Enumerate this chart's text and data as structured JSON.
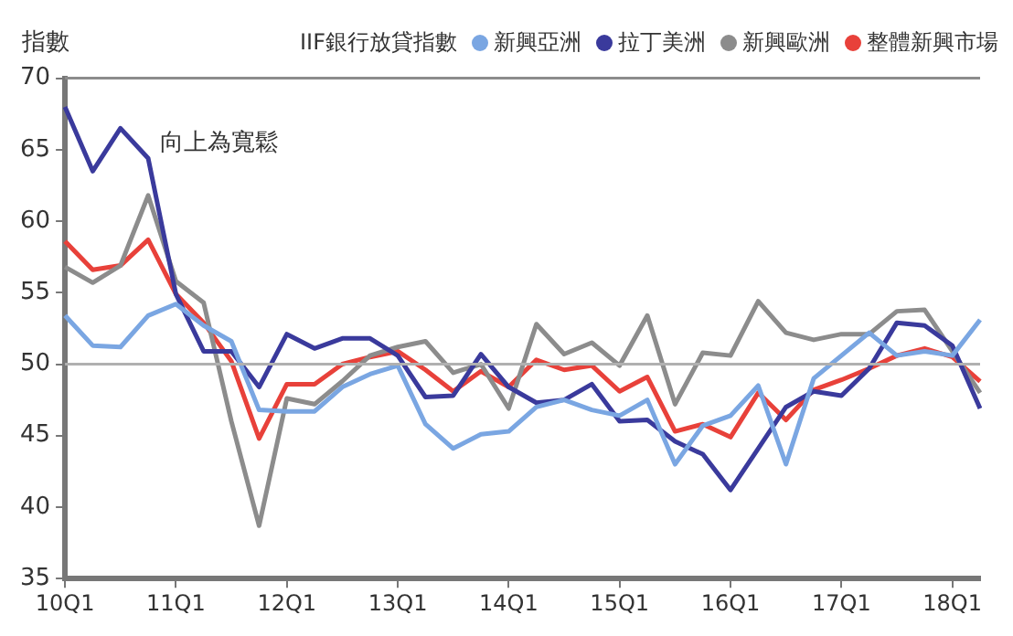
{
  "chart_data": {
    "type": "line",
    "ylabel": "指數",
    "legend_title": "IIF銀行放貸指數",
    "legend": "top right",
    "categories": [
      "10Q1",
      null,
      null,
      null,
      "11Q1",
      null,
      null,
      null,
      "12Q1",
      null,
      null,
      null,
      "13Q1",
      null,
      null,
      null,
      "14Q1",
      null,
      null,
      null,
      "15Q1",
      null,
      null,
      null,
      "16Q1",
      null,
      null,
      null,
      "17Q1",
      null,
      null,
      null,
      "18Q1",
      null
    ],
    "series": [
      {
        "name": "新興亞洲",
        "color": "#7aa6e2",
        "values": [
          53.4,
          51.3,
          51.2,
          53.4,
          54.2,
          52.7,
          51.6,
          46.8,
          46.7,
          46.7,
          48.4,
          49.3,
          49.9,
          45.8,
          44.1,
          45.1,
          45.3,
          47.0,
          47.5,
          46.8,
          46.4,
          47.5,
          43.0,
          45.7,
          46.4,
          48.5,
          43.0,
          49.0,
          50.6,
          52.2,
          50.6,
          50.9,
          50.6,
          53.1
        ]
      },
      {
        "name": "拉丁美洲",
        "color": "#3a3a9c",
        "values": [
          68.0,
          63.5,
          66.5,
          64.4,
          54.9,
          50.9,
          50.9,
          48.4,
          52.1,
          51.1,
          51.8,
          51.8,
          50.6,
          47.7,
          47.8,
          50.7,
          48.4,
          47.3,
          47.5,
          48.6,
          46.0,
          46.1,
          44.6,
          43.7,
          41.2,
          44.1,
          47.0,
          48.1,
          47.8,
          49.7,
          52.9,
          52.7,
          51.3,
          46.9
        ]
      },
      {
        "name": "新興歐洲",
        "color": "#8c8c8c",
        "values": [
          56.8,
          55.7,
          56.9,
          61.8,
          55.8,
          54.3,
          46.0,
          38.7,
          47.6,
          47.2,
          48.8,
          50.6,
          51.2,
          51.6,
          49.4,
          50.0,
          46.9,
          52.8,
          50.7,
          51.5,
          49.9,
          53.4,
          47.2,
          50.8,
          50.6,
          54.4,
          52.2,
          51.7,
          52.1,
          52.1,
          53.7,
          53.8,
          50.9,
          48.0
        ]
      },
      {
        "name": "整體新興市場",
        "color": "#e8413a",
        "values": [
          58.6,
          56.6,
          56.9,
          58.7,
          54.9,
          52.9,
          50.2,
          44.8,
          48.6,
          48.6,
          50.0,
          50.5,
          50.9,
          49.6,
          48.1,
          49.5,
          48.4,
          50.3,
          49.6,
          49.9,
          48.1,
          49.1,
          45.3,
          45.8,
          44.9,
          48.0,
          46.1,
          48.2,
          48.9,
          49.7,
          50.6,
          51.1,
          50.5,
          48.8
        ]
      }
    ],
    "ylim": [
      35,
      70
    ],
    "yticks": [
      35,
      40,
      45,
      50,
      55,
      60,
      65,
      70
    ],
    "grid": false,
    "marker": "none",
    "line_style": "solid",
    "ref_lines": [
      {
        "axis": "y",
        "value": 50,
        "color": "#b0b0b0"
      },
      {
        "axis": "y",
        "value": 70,
        "color": "#8c8c8c"
      }
    ],
    "annotations": [
      "向上為寬鬆"
    ]
  }
}
